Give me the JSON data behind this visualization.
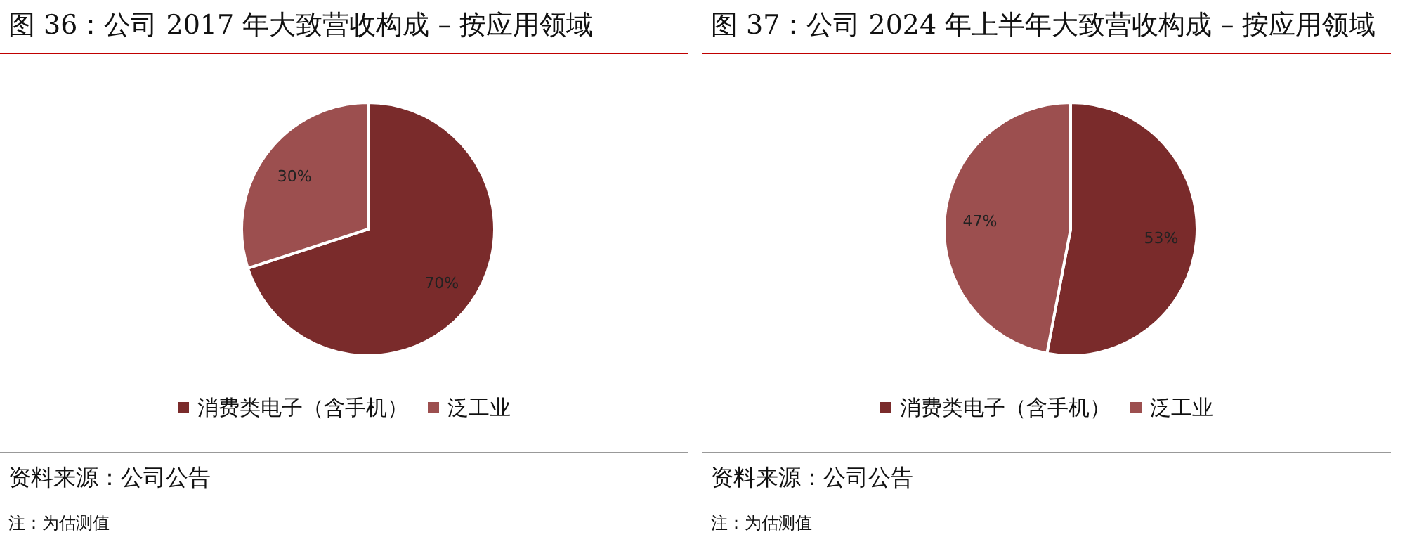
{
  "chart_data": [
    {
      "type": "pie",
      "title": "图 36：公司 2017 年大致营收构成 – 按应用领域",
      "categories": [
        "消费类电子（含手机）",
        "泛工业"
      ],
      "values": [
        70,
        30
      ],
      "colors": [
        "#7a2b2b",
        "#9c4f4f"
      ],
      "value_labels": [
        "70%",
        "30%"
      ],
      "legend": "bottom",
      "annotations": [
        "资料来源：公司公告",
        "注：为估测值"
      ]
    },
    {
      "type": "pie",
      "title": "图 37：公司 2024 年上半年大致营收构成 – 按应用领域",
      "categories": [
        "消费类电子（含手机）",
        "泛工业"
      ],
      "values": [
        53,
        47
      ],
      "colors": [
        "#7a2b2b",
        "#9c4f4f"
      ],
      "value_labels": [
        "53%",
        "47%"
      ],
      "legend": "bottom",
      "annotations": [
        "资料来源：公司公告",
        "注：为估测值"
      ]
    }
  ]
}
